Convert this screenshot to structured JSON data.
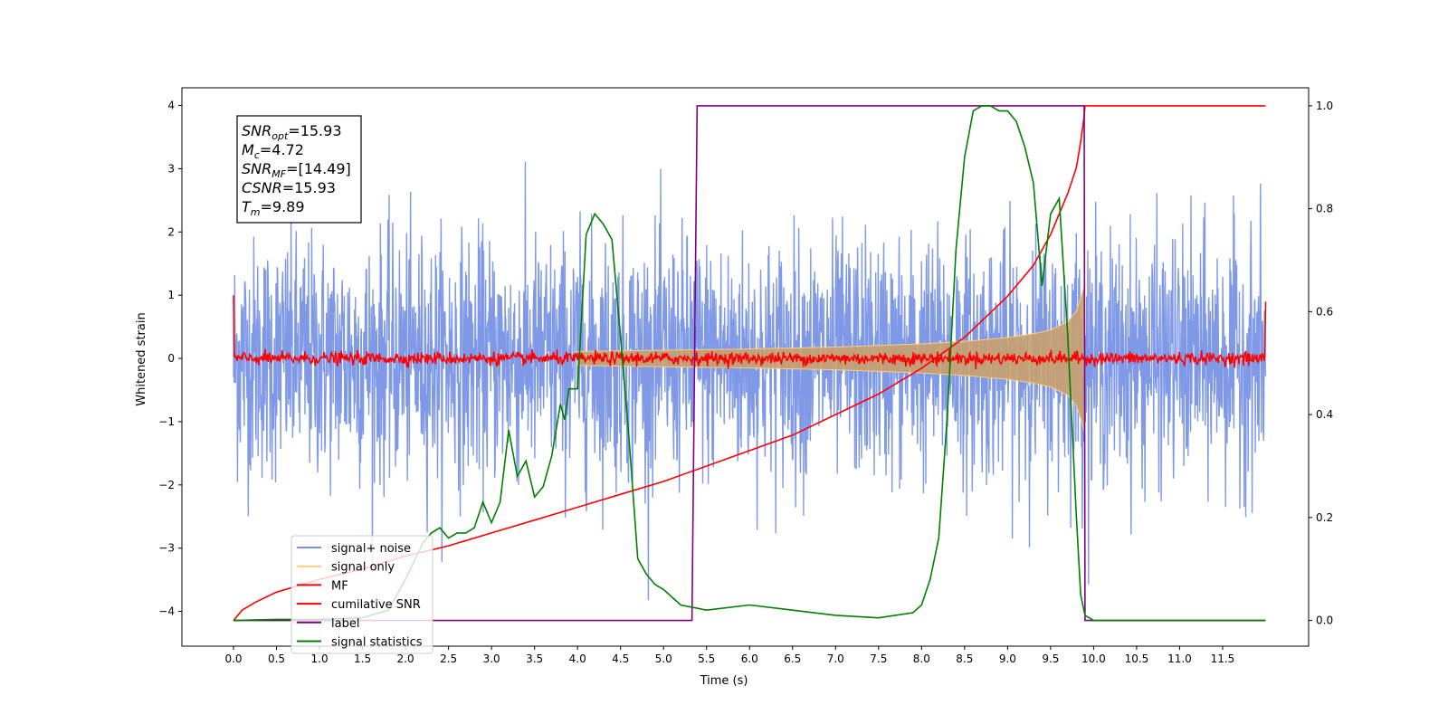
{
  "chart_data": {
    "type": "line",
    "xlabel": "Time (s)",
    "ylabel": "Whitened strain",
    "xlim": [
      -0.6,
      12.5
    ],
    "ylim": [
      -4.55,
      4.28
    ],
    "y2lim": [
      -0.05,
      1.035
    ],
    "x_ticks": [
      0.0,
      0.5,
      1.0,
      1.5,
      2.0,
      2.5,
      3.0,
      3.5,
      4.0,
      4.5,
      5.0,
      5.5,
      6.0,
      6.5,
      7.0,
      7.5,
      8.0,
      8.5,
      9.0,
      9.5,
      10.0,
      10.5,
      11.0,
      11.5
    ],
    "x_tick_labels": [
      "0.0",
      "0.5",
      "1.0",
      "1.5",
      "2.0",
      "2.5",
      "3.0",
      "3.5",
      "4.0",
      "4.5",
      "5.0",
      "5.5",
      "6.0",
      "6.5",
      "7.0",
      "7.5",
      "8.0",
      "8.5",
      "9.0",
      "9.5",
      "10.0",
      "10.5",
      "11.0",
      "11.5"
    ],
    "y_ticks": [
      -4,
      -3,
      -2,
      -1,
      0,
      1,
      2,
      3,
      4
    ],
    "y_tick_labels": [
      "−4",
      "−3",
      "−2",
      "−1",
      "0",
      "1",
      "2",
      "3",
      "4"
    ],
    "y2_ticks": [
      0.0,
      0.2,
      0.4,
      0.6,
      0.8,
      1.0
    ],
    "y2_tick_labels": [
      "0.0",
      "0.2",
      "0.4",
      "0.6",
      "0.8",
      "1.0"
    ],
    "legend_placement": "lower-left",
    "legend": [
      {
        "label": "signal+ noise",
        "color": "#7893e6"
      },
      {
        "label": "signal only",
        "color": "#ffcc80"
      },
      {
        "label": "MF",
        "color": "#ff0000"
      },
      {
        "label": "cumilative SNR",
        "color": "#ff0000"
      },
      {
        "label": "label",
        "color": "#800080"
      },
      {
        "label": "signal statistics",
        "color": "#008000"
      }
    ],
    "annotation": {
      "lines": [
        {
          "base": "SNR",
          "sub": "opt",
          "rest": "=15.93"
        },
        {
          "base": "M",
          "sub": "c",
          "rest": "=4.72"
        },
        {
          "base": "SNR",
          "sub": "MF",
          "rest": "=[14.49]"
        },
        {
          "base": "CSNR",
          "sub": "",
          "rest": "=15.93"
        },
        {
          "base": "T",
          "sub": "m",
          "rest": "=9.89"
        }
      ]
    },
    "series": [
      {
        "name": "signal+ noise",
        "axis": "left",
        "color": "#7893e6",
        "description_values": {
          "x_range": [
            0.0,
            12.0
          ],
          "envelope_typical": [
            -2.2,
            2.2
          ],
          "peak_max": 3.9,
          "peak_min": -4.2
        }
      },
      {
        "name": "signal only",
        "axis": "left",
        "color": "#ffcc80",
        "envelope": {
          "x": [
            4.0,
            5.0,
            6.0,
            7.0,
            8.0,
            8.5,
            9.0,
            9.3,
            9.5,
            9.7,
            9.8,
            9.85,
            9.89
          ],
          "amp": [
            0.11,
            0.13,
            0.15,
            0.18,
            0.23,
            0.27,
            0.33,
            0.39,
            0.45,
            0.58,
            0.75,
            0.95,
            1.15
          ]
        }
      },
      {
        "name": "MF",
        "axis": "left",
        "color": "#ff0000",
        "description_values": {
          "x_range": [
            0.0,
            12.0
          ],
          "baseline": 0.0,
          "noise_amp": 0.1,
          "end_values": [
            1.0,
            0.9
          ]
        }
      },
      {
        "name": "cumilative SNR",
        "axis": "right",
        "color": "#ff0000",
        "x": [
          0.0,
          0.1,
          0.25,
          0.5,
          1.0,
          1.5,
          2.0,
          2.5,
          3.0,
          3.5,
          4.0,
          4.5,
          5.0,
          5.5,
          6.0,
          6.5,
          7.0,
          7.5,
          8.0,
          8.5,
          9.0,
          9.3,
          9.5,
          9.7,
          9.8,
          9.85,
          9.89,
          9.9,
          12.0
        ],
        "y": [
          0.0,
          0.02,
          0.035,
          0.055,
          0.08,
          0.1,
          0.125,
          0.145,
          0.17,
          0.195,
          0.22,
          0.245,
          0.27,
          0.3,
          0.33,
          0.36,
          0.4,
          0.44,
          0.49,
          0.55,
          0.63,
          0.69,
          0.75,
          0.83,
          0.88,
          0.93,
          0.98,
          1.0,
          1.0
        ]
      },
      {
        "name": "label",
        "axis": "right",
        "color": "#800080",
        "x": [
          0.0,
          5.33,
          5.33,
          5.39,
          9.89,
          9.9,
          12.0
        ],
        "y": [
          0.0,
          0.0,
          0.0,
          1.0,
          1.0,
          0.0,
          0.0
        ]
      },
      {
        "name": "signal statistics",
        "axis": "right",
        "color": "#008000",
        "x": [
          0.0,
          0.5,
          1.0,
          1.5,
          1.8,
          2.0,
          2.2,
          2.3,
          2.4,
          2.5,
          2.6,
          2.7,
          2.8,
          2.9,
          3.0,
          3.1,
          3.2,
          3.3,
          3.4,
          3.5,
          3.6,
          3.7,
          3.8,
          3.85,
          3.9,
          4.0,
          4.1,
          4.2,
          4.3,
          4.4,
          4.5,
          4.6,
          4.7,
          4.8,
          4.9,
          5.0,
          5.2,
          5.5,
          6.0,
          6.5,
          7.0,
          7.5,
          7.9,
          8.0,
          8.1,
          8.2,
          8.3,
          8.4,
          8.5,
          8.6,
          8.7,
          8.8,
          8.9,
          9.0,
          9.1,
          9.2,
          9.3,
          9.4,
          9.5,
          9.6,
          9.7,
          9.8,
          9.85,
          9.9,
          10.0,
          12.0
        ],
        "y": [
          0.0,
          0.002,
          0.002,
          0.005,
          0.02,
          0.08,
          0.15,
          0.17,
          0.18,
          0.16,
          0.17,
          0.17,
          0.18,
          0.23,
          0.19,
          0.23,
          0.37,
          0.28,
          0.31,
          0.24,
          0.26,
          0.32,
          0.42,
          0.39,
          0.45,
          0.45,
          0.75,
          0.79,
          0.77,
          0.74,
          0.55,
          0.35,
          0.12,
          0.09,
          0.07,
          0.06,
          0.03,
          0.02,
          0.03,
          0.02,
          0.01,
          0.005,
          0.015,
          0.03,
          0.08,
          0.16,
          0.4,
          0.72,
          0.9,
          0.99,
          1.0,
          1.0,
          0.99,
          0.99,
          0.97,
          0.92,
          0.85,
          0.65,
          0.79,
          0.82,
          0.55,
          0.2,
          0.05,
          0.01,
          0.0,
          0.0
        ]
      }
    ]
  }
}
